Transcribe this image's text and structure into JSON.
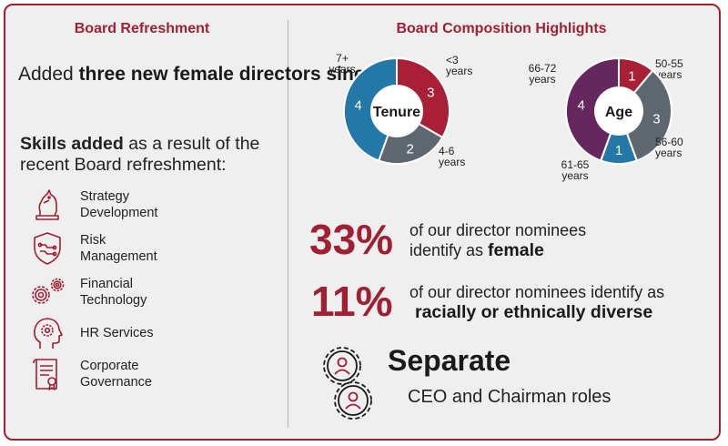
{
  "left_panel": {
    "title": "Board Refreshment",
    "intro_prefix": "Added ",
    "intro_bold": "three new female directors since 2020",
    "skills_bold": "Skills added",
    "skills_rest": " as a result of the recent Board refreshment:",
    "skills": [
      {
        "line1": "Strategy",
        "line2": "Development",
        "icon": "chess-knight-icon"
      },
      {
        "line1": "Risk",
        "line2": "Management",
        "icon": "shield-circuit-icon"
      },
      {
        "line1": "Financial",
        "line2": "Technology",
        "icon": "gears-icon"
      },
      {
        "line1": "HR Services",
        "line2": "",
        "icon": "head-gear-icon"
      },
      {
        "line1": "Corporate",
        "line2": "Governance",
        "icon": "certificate-document-icon"
      }
    ]
  },
  "right_panel": {
    "title": "Board Composition Highlights",
    "stat1_value": "33%",
    "stat1_line1": "of our director nominees",
    "stat1_line2_prefix": "identify as ",
    "stat1_line2_bold": "female",
    "stat2_value": "11%",
    "stat2_line1": "of our director nominees identify as",
    "stat2_line2_bold": "racially or ethnically diverse",
    "separate_title": "Separate",
    "separate_sub": "CEO and Chairman roles",
    "separate_icon": "people-gears-icon"
  },
  "chart_data": [
    {
      "type": "pie",
      "title": "Tenure",
      "categories": [
        "<3 years",
        "4-6 years",
        "7+ years"
      ],
      "values": [
        3,
        2,
        4
      ],
      "colors": [
        "#a81f36",
        "#5e6670",
        "#2478a8"
      ]
    },
    {
      "type": "pie",
      "title": "Age",
      "categories": [
        "50-55 years",
        "56-60 years",
        "61-65 years",
        "66-72 years"
      ],
      "values": [
        1,
        3,
        1,
        4
      ],
      "colors": [
        "#a81f36",
        "#5e6670",
        "#2478a8",
        "#66265e"
      ]
    }
  ]
}
